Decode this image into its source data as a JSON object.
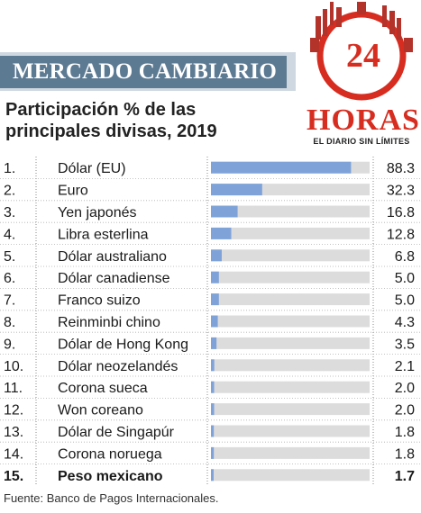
{
  "header": {
    "title": "MERCADO CAMBIARIO"
  },
  "logo": {
    "number": "24",
    "brand": "HORAS",
    "tagline": "EL DIARIO SIN LÍMITES"
  },
  "chart_data": {
    "type": "bar",
    "orientation": "horizontal",
    "title": "Participación % de las principales divisas, 2019",
    "ranks": [
      "1.",
      "2.",
      "3.",
      "4.",
      "5.",
      "6.",
      "7.",
      "8.",
      "9.",
      "10.",
      "11.",
      "12.",
      "13.",
      "14.",
      "15."
    ],
    "categories": [
      "Dólar (EU)",
      "Euro",
      "Yen japonés",
      "Libra esterlina",
      "Dólar australiano",
      "Dólar canadiense",
      "Franco suizo",
      "Reinminbi chino",
      "Dólar de Hong Kong",
      "Dólar neozelandés",
      "Corona sueca",
      "Won coreano",
      "Dólar de Singapúr",
      "Corona noruega",
      "Peso mexicano"
    ],
    "values": [
      88.3,
      32.3,
      16.8,
      12.8,
      6.8,
      5.0,
      5.0,
      4.3,
      3.5,
      2.1,
      2.0,
      2.0,
      1.8,
      1.8,
      1.7
    ],
    "value_labels": [
      "88.3",
      "32.3",
      "16.8",
      "12.8",
      "6.8",
      "5.0",
      "5.0",
      "4.3",
      "3.5",
      "2.1",
      "2.0",
      "2.0",
      "1.8",
      "1.8",
      "1.7"
    ],
    "xlim": [
      0,
      100
    ],
    "highlight_index": 14,
    "bar_color": "#7fa3d8",
    "track_color": "#dcdcdc"
  },
  "source": "Fuente: Banco de Pagos Internacionales."
}
